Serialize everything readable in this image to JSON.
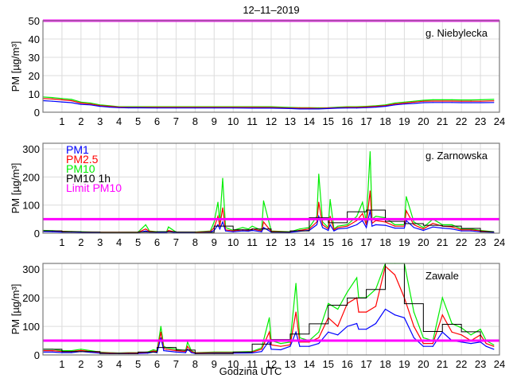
{
  "title": "12–11–2019",
  "xlabel": "Godzina UTC",
  "colors": {
    "PM1": "#0000ff",
    "PM2.5": "#ff0000",
    "PM10": "#00ee00",
    "PM10 1h": "#000000",
    "Limit PM10": "#ff00ff"
  },
  "legend": [
    "PM1",
    "PM2.5",
    "PM10",
    "PM10 1h",
    "Limit PM10"
  ],
  "limit_pm10": 50,
  "chart_data": [
    {
      "type": "line",
      "station": "g. Niebylecka",
      "ylabel": "PM [µg/m³]",
      "ylim": [
        0,
        50
      ],
      "yticks": [
        "0",
        "10",
        "20",
        "30",
        "40",
        "50"
      ],
      "xlim": [
        0,
        24
      ],
      "xticks": [
        "1",
        "2",
        "3",
        "4",
        "5",
        "6",
        "7",
        "8",
        "9",
        "10",
        "11",
        "12",
        "13",
        "14",
        "15",
        "16",
        "17",
        "18",
        "19",
        "20",
        "21",
        "22",
        "23",
        "24"
      ],
      "x": [
        0,
        0.5,
        1,
        1.5,
        2,
        2.5,
        3,
        3.5,
        4,
        4.5,
        5,
        6,
        7,
        8,
        9,
        10,
        11,
        12,
        13,
        13.5,
        14,
        14.5,
        15,
        15.5,
        16,
        16.5,
        17,
        17.5,
        18,
        18.5,
        19,
        19.5,
        20,
        20.5,
        21,
        21.5,
        22,
        22.5,
        23,
        23.7
      ],
      "series": [
        {
          "name": "PM10",
          "values": [
            8.3,
            8,
            7.5,
            7,
            5.5,
            5,
            4,
            3.5,
            3,
            3,
            3,
            3,
            3,
            3,
            3,
            3,
            3,
            3,
            2.6,
            2.5,
            2.5,
            2.4,
            2.5,
            2.8,
            3,
            3,
            3.2,
            3.5,
            4,
            5,
            5.5,
            6,
            6.5,
            6.8,
            6.8,
            6.8,
            6.7,
            6.7,
            6.8,
            7
          ]
        },
        {
          "name": "PM2.5",
          "values": [
            7.5,
            7.2,
            6.8,
            6.3,
            5,
            4.5,
            3.6,
            3.2,
            2.8,
            2.7,
            2.7,
            2.7,
            2.7,
            2.7,
            2.7,
            2.7,
            2.7,
            2.6,
            2.3,
            2.2,
            2.2,
            2.1,
            2.3,
            2.5,
            2.7,
            2.7,
            2.9,
            3.2,
            3.6,
            4.5,
            5,
            5.5,
            6,
            6.1,
            6.1,
            6.1,
            6,
            6,
            6,
            6.2
          ]
        },
        {
          "name": "PM1",
          "values": [
            6.3,
            6,
            5.6,
            5.2,
            4.3,
            4,
            3.2,
            2.8,
            2.5,
            2.4,
            2.4,
            2.3,
            2.3,
            2.3,
            2.3,
            2.3,
            2.2,
            2.2,
            2,
            1.8,
            1.8,
            1.8,
            2,
            2.2,
            2.3,
            2.3,
            2.5,
            2.8,
            3.2,
            4,
            4.5,
            4.8,
            5.2,
            5.3,
            5.3,
            5.3,
            5.2,
            5.2,
            5.2,
            5.3
          ]
        }
      ],
      "hourly_pm10": []
    },
    {
      "type": "line",
      "station": "g. Zarnowska",
      "ylabel": "PM [µg/m³]",
      "ylim": [
        0,
        320
      ],
      "yticks": [
        "0",
        "100",
        "200",
        "300"
      ],
      "xlim": [
        0,
        24
      ],
      "xticks": [
        "1",
        "2",
        "3",
        "4",
        "5",
        "6",
        "7",
        "8",
        "9",
        "10",
        "11",
        "12",
        "13",
        "14",
        "15",
        "16",
        "17",
        "18",
        "19",
        "20",
        "21",
        "22",
        "23",
        "24"
      ],
      "x": [
        0,
        0.5,
        1,
        1.5,
        2,
        3,
        4,
        5,
        5.4,
        5.6,
        6,
        6.5,
        6.6,
        7,
        8,
        8.8,
        9,
        9.2,
        9.3,
        9.45,
        9.6,
        10,
        10.5,
        10.8,
        11,
        11.5,
        11.6,
        12,
        13,
        13.5,
        14,
        14.4,
        14.5,
        14.7,
        15,
        15.1,
        15.3,
        15.5,
        16,
        16.5,
        16.8,
        17,
        17.2,
        17.3,
        17.5,
        18,
        18.5,
        19,
        19.1,
        19.5,
        20,
        20.5,
        21,
        21.5,
        22,
        22.5,
        23,
        23.7
      ],
      "series": [
        {
          "name": "PM10",
          "values": [
            10,
            9,
            7,
            6,
            5,
            3,
            3,
            4,
            30,
            8,
            5,
            5,
            22,
            4,
            4,
            8,
            40,
            110,
            40,
            195,
            20,
            10,
            20,
            15,
            25,
            10,
            115,
            8,
            5,
            15,
            20,
            60,
            210,
            40,
            20,
            120,
            15,
            25,
            30,
            60,
            110,
            40,
            290,
            50,
            60,
            55,
            30,
            30,
            130,
            40,
            20,
            50,
            30,
            30,
            15,
            15,
            10,
            5
          ]
        },
        {
          "name": "PM2.5",
          "values": [
            8,
            7,
            6,
            5,
            4,
            3,
            3,
            3,
            15,
            6,
            4,
            4,
            10,
            3,
            3,
            6,
            20,
            60,
            25,
            90,
            12,
            8,
            12,
            10,
            15,
            8,
            40,
            6,
            4,
            10,
            15,
            40,
            110,
            30,
            15,
            60,
            12,
            20,
            25,
            45,
            70,
            30,
            150,
            35,
            45,
            40,
            25,
            25,
            80,
            30,
            15,
            35,
            25,
            22,
            12,
            12,
            8,
            4
          ]
        },
        {
          "name": "PM1",
          "values": [
            6,
            5,
            4,
            4,
            3,
            2,
            2,
            2,
            8,
            4,
            3,
            3,
            5,
            2,
            2,
            4,
            10,
            30,
            15,
            40,
            8,
            5,
            8,
            7,
            10,
            5,
            20,
            4,
            3,
            7,
            10,
            30,
            60,
            20,
            10,
            30,
            8,
            15,
            18,
            30,
            45,
            20,
            80,
            25,
            30,
            28,
            18,
            18,
            45,
            20,
            10,
            22,
            18,
            15,
            8,
            8,
            5,
            3
          ]
        }
      ],
      "hourly_pm10": [
        8,
        5,
        4,
        3,
        3,
        4,
        5,
        4,
        3,
        25,
        12,
        15,
        4,
        8,
        55,
        37,
        76,
        82,
        42,
        34,
        28,
        25,
        17,
        5
      ]
    },
    {
      "type": "line",
      "station": "Zawale",
      "ylabel": "PM [µg/m³]",
      "ylim": [
        0,
        320
      ],
      "yticks": [
        "0",
        "100",
        "200",
        "300"
      ],
      "xlim": [
        0,
        24
      ],
      "xticks": [
        "1",
        "2",
        "3",
        "4",
        "5",
        "6",
        "7",
        "8",
        "9",
        "10",
        "11",
        "12",
        "13",
        "14",
        "15",
        "16",
        "17",
        "18",
        "19",
        "20",
        "21",
        "22",
        "23",
        "24"
      ],
      "x": [
        0,
        0.5,
        1,
        1.5,
        2,
        2.5,
        3,
        3.5,
        4,
        4.5,
        5,
        5.5,
        5.8,
        6,
        6.2,
        6.35,
        6.5,
        7,
        7.5,
        7.6,
        7.8,
        8,
        9,
        10,
        11,
        11.5,
        11.9,
        12,
        12.5,
        13,
        13.3,
        13.5,
        14,
        14.5,
        15,
        15.5,
        16,
        16.5,
        16.6,
        17,
        17.5,
        18,
        18.5,
        19,
        19.5,
        20,
        20.5,
        21,
        21.5,
        22,
        22.5,
        23,
        23.3,
        23.7
      ],
      "series": [
        {
          "name": "PM10",
          "values": [
            20,
            20,
            15,
            15,
            20,
            15,
            10,
            8,
            7,
            8,
            8,
            10,
            18,
            15,
            100,
            30,
            25,
            20,
            15,
            45,
            15,
            8,
            10,
            10,
            12,
            25,
            130,
            50,
            40,
            45,
            250,
            60,
            50,
            80,
            180,
            160,
            220,
            270,
            200,
            200,
            230,
            320,
            320,
            320,
            150,
            60,
            50,
            200,
            110,
            95,
            70,
            90,
            50,
            35
          ]
        },
        {
          "name": "PM2.5",
          "values": [
            15,
            15,
            12,
            12,
            16,
            12,
            8,
            7,
            6,
            7,
            7,
            8,
            14,
            12,
            80,
            22,
            20,
            15,
            12,
            30,
            12,
            7,
            8,
            8,
            10,
            20,
            80,
            35,
            30,
            35,
            150,
            45,
            45,
            60,
            130,
            100,
            180,
            200,
            150,
            150,
            170,
            310,
            280,
            200,
            100,
            40,
            40,
            140,
            80,
            70,
            50,
            70,
            40,
            30
          ]
        },
        {
          "name": "PM1",
          "values": [
            10,
            10,
            8,
            8,
            12,
            9,
            6,
            5,
            5,
            5,
            5,
            6,
            10,
            8,
            60,
            15,
            14,
            10,
            8,
            20,
            8,
            5,
            6,
            6,
            7,
            12,
            50,
            20,
            18,
            30,
            80,
            30,
            30,
            40,
            80,
            70,
            100,
            110,
            90,
            90,
            110,
            160,
            140,
            130,
            60,
            30,
            30,
            80,
            50,
            45,
            40,
            45,
            30,
            20
          ]
        }
      ],
      "hourly_pm10": [
        20,
        12,
        12,
        5,
        5,
        10,
        26,
        17,
        5,
        5,
        10,
        38,
        54,
        73,
        109,
        174,
        199,
        229,
        330,
        179,
        82,
        107,
        81,
        50
      ]
    }
  ]
}
